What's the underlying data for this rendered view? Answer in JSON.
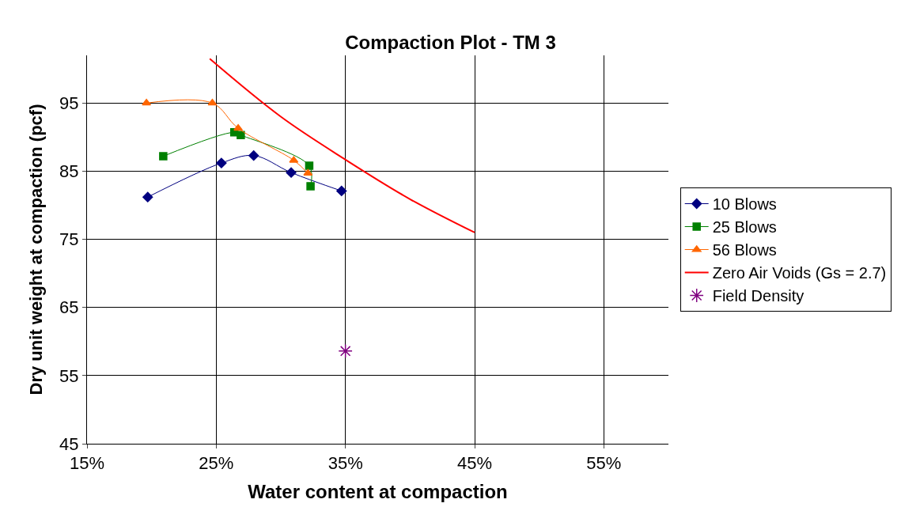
{
  "chart_data": {
    "type": "line",
    "title": "Compaction Plot - TM 3",
    "xlabel": "Water content at compaction",
    "ylabel": "Dry unit weight at compaction (pcf)",
    "xlim": [
      15,
      60
    ],
    "xticks": [
      {
        "value": 15,
        "label": "15%"
      },
      {
        "value": 25,
        "label": "25%"
      },
      {
        "value": 35,
        "label": "35%"
      },
      {
        "value": 45,
        "label": "45%"
      },
      {
        "value": 55,
        "label": "55%"
      }
    ],
    "ylim": [
      45,
      102
    ],
    "yticks": [
      45,
      55,
      65,
      75,
      85,
      95
    ],
    "grid": true,
    "legend": "right",
    "series": [
      {
        "name": "10 Blows",
        "color": "#000080",
        "marker": "diamond",
        "x": [
          19.7,
          25.4,
          27.9,
          30.8,
          34.7
        ],
        "values": [
          81.2,
          86.2,
          87.3,
          84.8,
          82.1
        ]
      },
      {
        "name": "25 Blows",
        "color": "#008000",
        "marker": "square",
        "x": [
          20.9,
          26.4,
          26.9,
          32.2,
          32.3
        ],
        "values": [
          87.2,
          90.7,
          90.3,
          85.8,
          82.8
        ]
      },
      {
        "name": "56 Blows",
        "color": "#ff6600",
        "marker": "triangle",
        "x": [
          19.6,
          24.7,
          26.7,
          31.0,
          32.1
        ],
        "values": [
          95.0,
          95.0,
          91.3,
          86.6,
          84.7
        ]
      },
      {
        "name": "Zero Air Voids (Gs = 2.7)",
        "color": "#ff0000",
        "marker": "none",
        "x": [
          24.5,
          30.0,
          35.0,
          40.0,
          45.0
        ],
        "values": [
          101.5,
          93.0,
          86.7,
          80.9,
          76.0
        ]
      },
      {
        "name": "Field Density",
        "type": "scatter",
        "color": "#800080",
        "marker": "cross",
        "x": [
          35.0
        ],
        "values": [
          58.6
        ]
      }
    ]
  }
}
